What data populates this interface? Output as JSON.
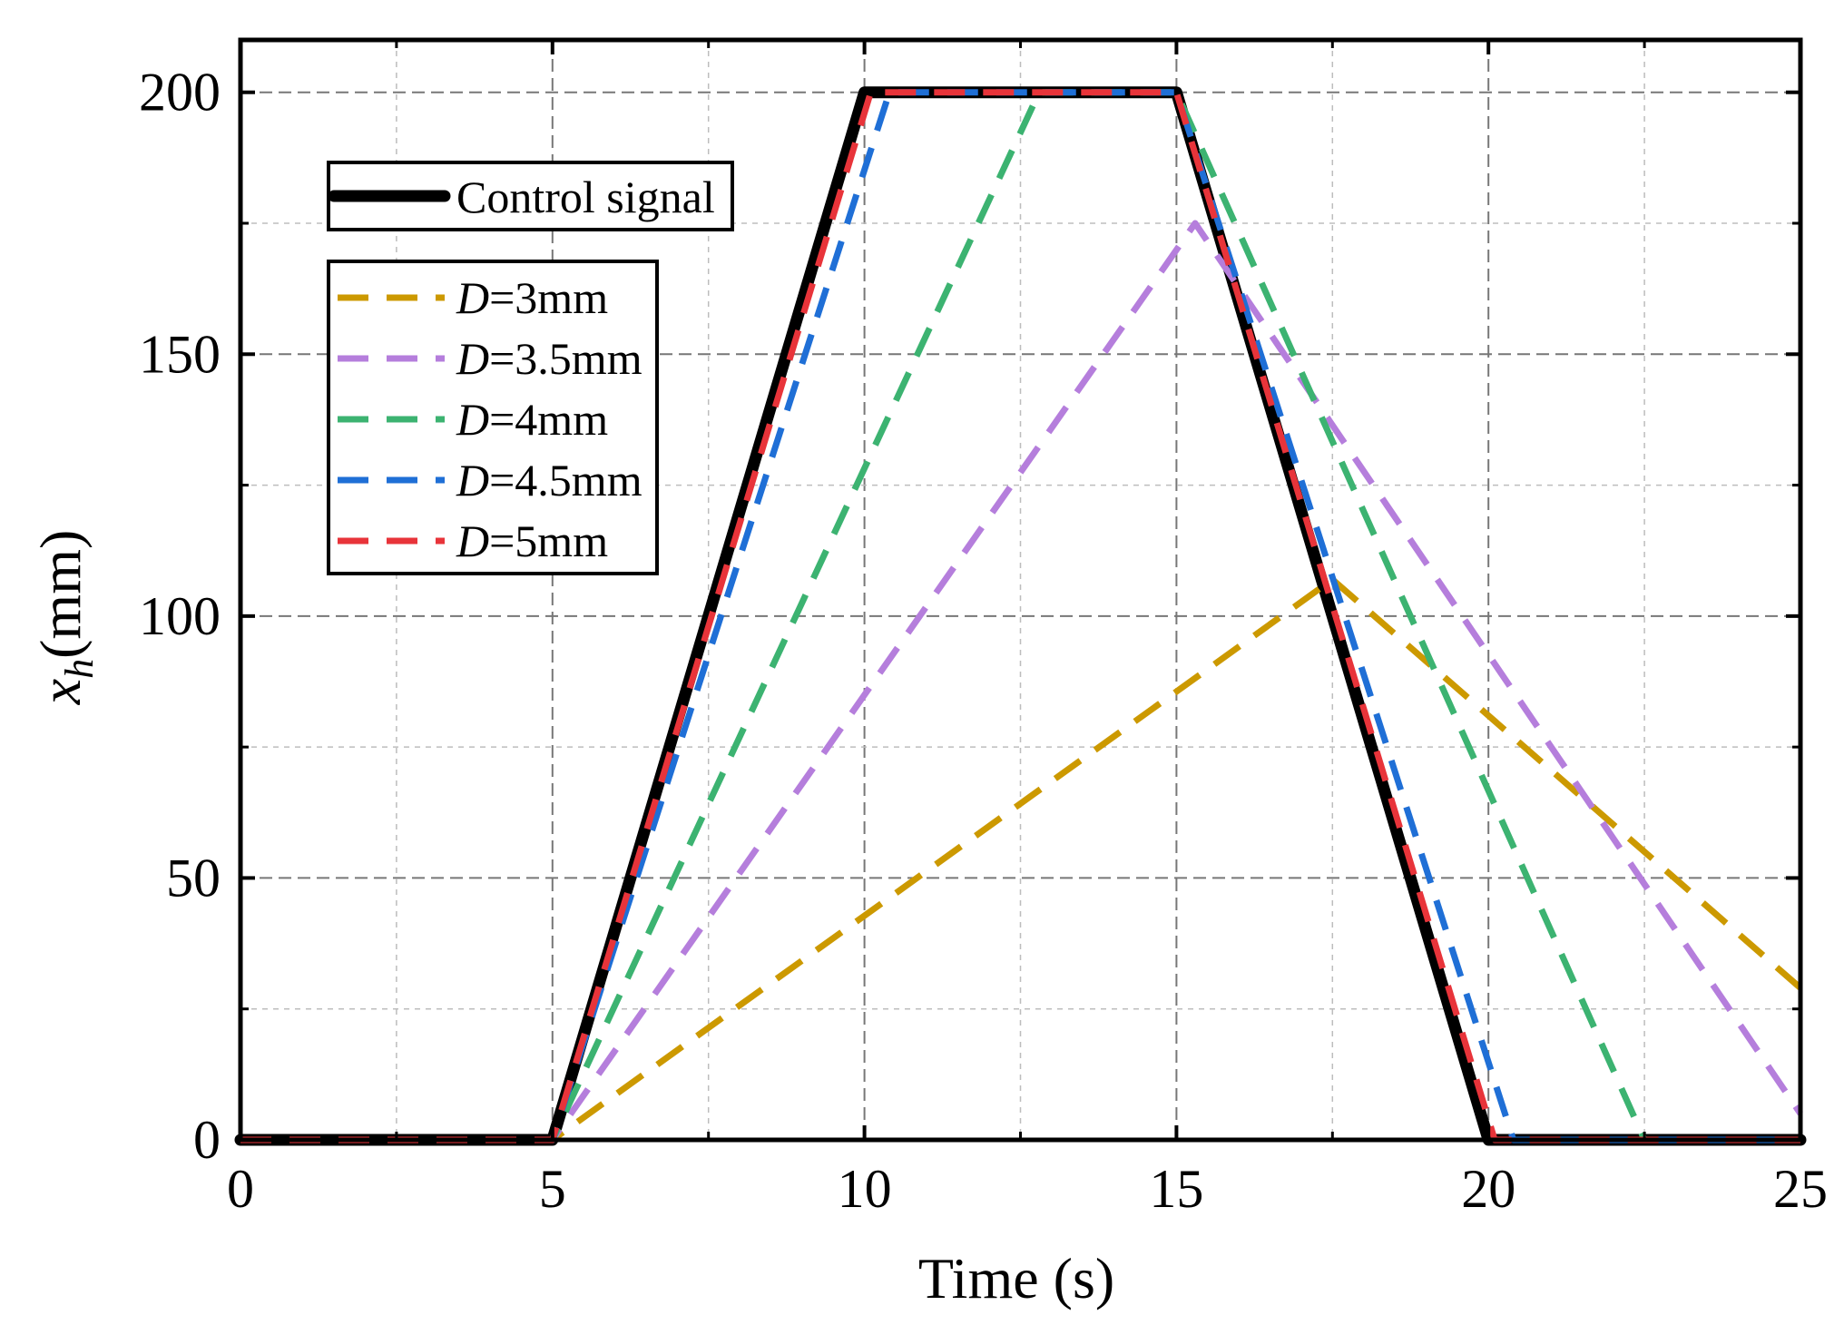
{
  "chart_data": {
    "type": "line",
    "xlabel": "Time (s)",
    "ylabel_main": "x",
    "ylabel_sub": "h",
    "ylabel_unit": "(mm)",
    "xlim": [
      0,
      25
    ],
    "ylim": [
      0,
      210
    ],
    "x_ticks": [
      0,
      5,
      10,
      15,
      20,
      25
    ],
    "x_tick_labels": [
      "0",
      "5",
      "10",
      "15",
      "20",
      "25"
    ],
    "y_ticks": [
      0,
      50,
      100,
      150,
      200
    ],
    "y_tick_labels": [
      "0",
      "50",
      "100",
      "150",
      "200"
    ],
    "x_minor_ticks": [
      2.5,
      7.5,
      12.5,
      17.5,
      22.5
    ],
    "y_minor_ticks": [
      25,
      75,
      125,
      175
    ],
    "grid": true,
    "legend_control": {
      "placement": "top-left",
      "label": "Control signal"
    },
    "legend_series": {
      "placement": "top-left",
      "entries": [
        {
          "italic": "D",
          "rest": "=3mm"
        },
        {
          "italic": "D",
          "rest": "=3.5mm"
        },
        {
          "italic": "D",
          "rest": "=4mm"
        },
        {
          "italic": "D",
          "rest": "=4.5mm"
        },
        {
          "italic": "D",
          "rest": "=5mm"
        }
      ]
    },
    "series": [
      {
        "name": "Control signal",
        "color": "#000000",
        "style": "solid",
        "x": [
          0,
          5,
          10,
          15,
          20,
          25
        ],
        "y": [
          0,
          0,
          200,
          200,
          0,
          0
        ]
      },
      {
        "name": "D=3mm",
        "color": "#cc9900",
        "style": "dashed",
        "x": [
          0,
          5,
          17.5,
          25
        ],
        "y": [
          0,
          0,
          107,
          29
        ]
      },
      {
        "name": "D=3.5mm",
        "color": "#b57edc",
        "style": "dashed",
        "x": [
          0,
          5,
          15.3,
          25
        ],
        "y": [
          0,
          0,
          175,
          5
        ]
      },
      {
        "name": "D=4mm",
        "color": "#3cb371",
        "style": "dashed",
        "x": [
          0,
          5,
          12.8,
          15,
          22.5,
          25
        ],
        "y": [
          0,
          0,
          200,
          200,
          0,
          0
        ]
      },
      {
        "name": "D=4.5mm",
        "color": "#1f6fd6",
        "style": "dashed",
        "x": [
          0,
          5,
          10.4,
          15,
          20.4,
          25
        ],
        "y": [
          0,
          0,
          200,
          200,
          0,
          0
        ]
      },
      {
        "name": "D=5mm",
        "color": "#e8343a",
        "style": "dashed",
        "x": [
          0,
          5,
          10.1,
          15,
          20.1,
          25
        ],
        "y": [
          0,
          0,
          200,
          200,
          0,
          0
        ]
      }
    ]
  }
}
